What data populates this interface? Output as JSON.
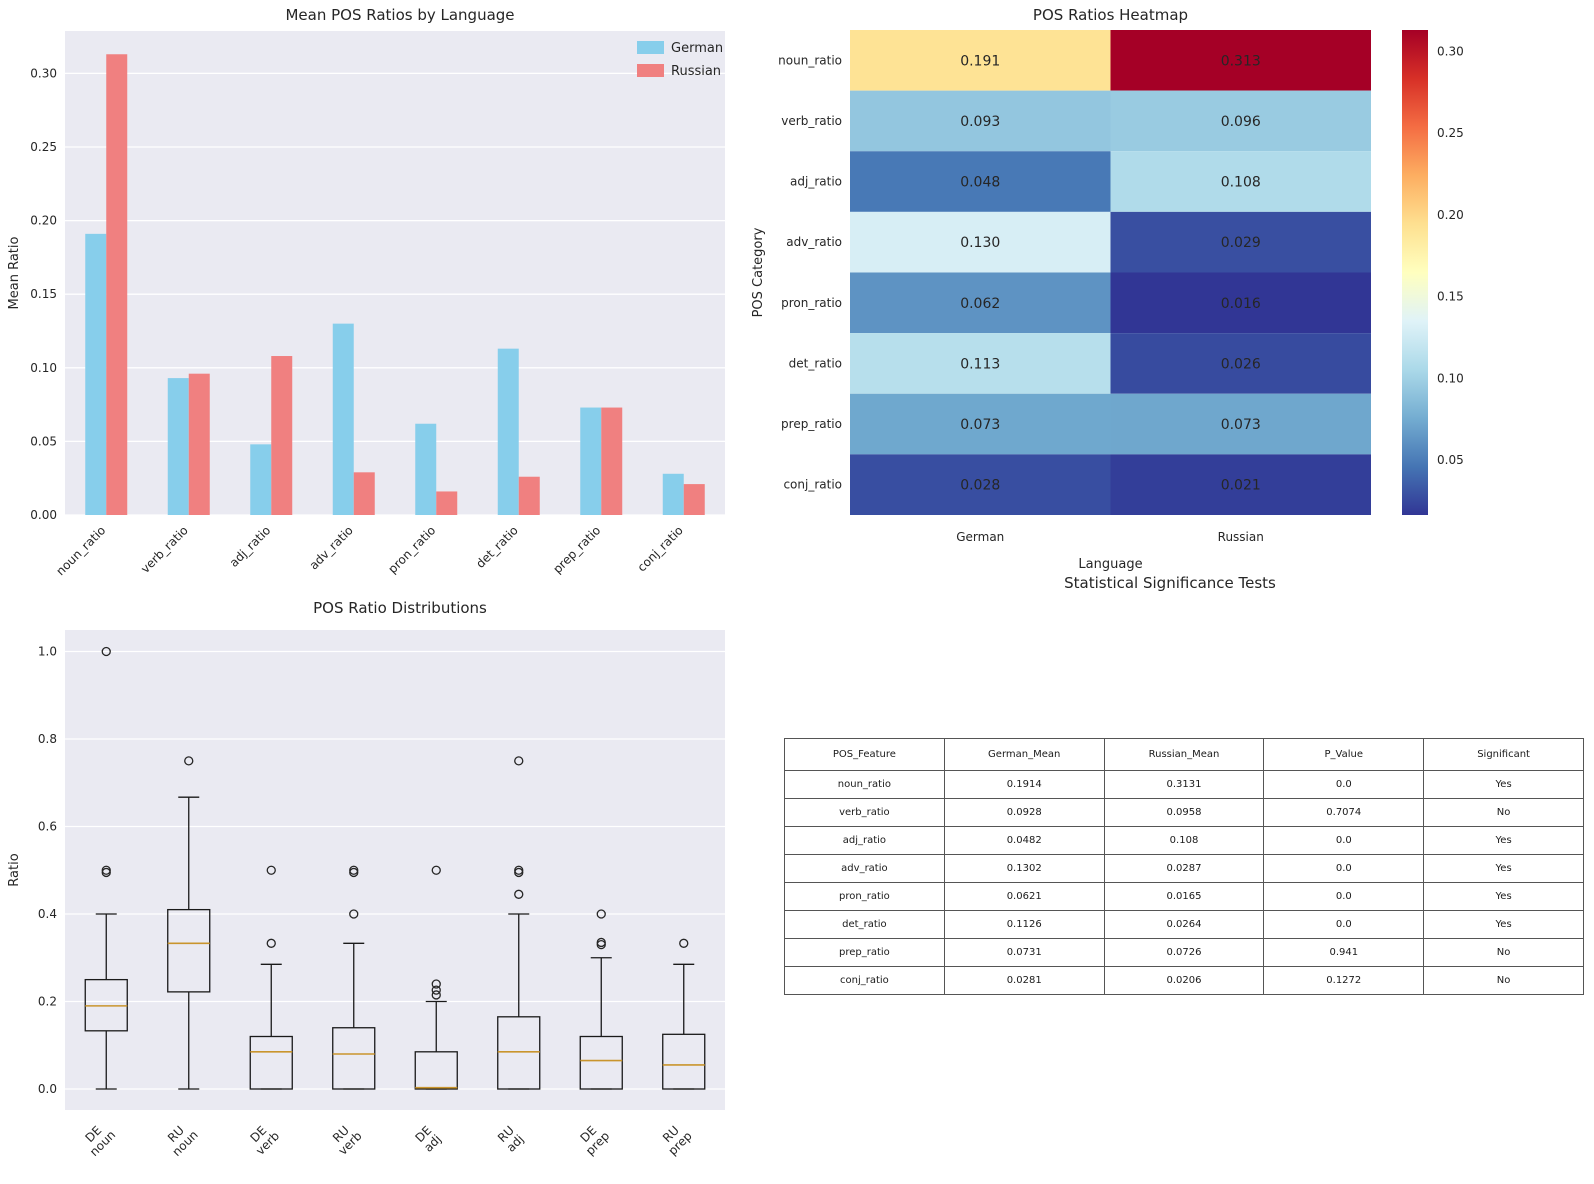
{
  "figure": {
    "background": "#ffffff",
    "plot_background": "#eaeaf2",
    "grid_color": "#ffffff",
    "text_color": "#262626",
    "box_edge_color": "#1a1a1a"
  },
  "chart_data": [
    {
      "id": "bar",
      "type": "bar",
      "title": "Mean POS Ratios by Language",
      "ylabel": "Mean Ratio",
      "categories": [
        "noun_ratio",
        "verb_ratio",
        "adj_ratio",
        "adv_ratio",
        "pron_ratio",
        "det_ratio",
        "prep_ratio",
        "conj_ratio"
      ],
      "series": [
        {
          "name": "German",
          "color": "#87ceeb",
          "values": [
            0.191,
            0.093,
            0.048,
            0.13,
            0.062,
            0.113,
            0.073,
            0.028
          ]
        },
        {
          "name": "Russian",
          "color": "#f08080",
          "values": [
            0.313,
            0.096,
            0.108,
            0.029,
            0.016,
            0.026,
            0.073,
            0.021
          ]
        }
      ],
      "yticks": [
        0.0,
        0.05,
        0.1,
        0.15,
        0.2,
        0.25,
        0.3
      ],
      "ylim": [
        0,
        0.3288
      ],
      "legend_position": "upper right",
      "grid": true
    },
    {
      "id": "heatmap",
      "type": "heatmap",
      "title": "POS Ratios Heatmap",
      "xlabel": "Language",
      "ylabel": "POS Category",
      "columns": [
        "German",
        "Russian"
      ],
      "rows": [
        "noun_ratio",
        "verb_ratio",
        "adj_ratio",
        "adv_ratio",
        "pron_ratio",
        "det_ratio",
        "prep_ratio",
        "conj_ratio"
      ],
      "values": [
        [
          0.191,
          0.313
        ],
        [
          0.093,
          0.096
        ],
        [
          0.048,
          0.108
        ],
        [
          0.13,
          0.029
        ],
        [
          0.062,
          0.016
        ],
        [
          0.113,
          0.026
        ],
        [
          0.073,
          0.073
        ],
        [
          0.028,
          0.021
        ]
      ],
      "cell_colors": [
        [
          "#fee395",
          "#a50026"
        ],
        [
          "#93c6df",
          "#99cbe1"
        ],
        [
          "#4879b6",
          "#b0dbea"
        ],
        [
          "#d7eef5",
          "#394fa1"
        ],
        [
          "#5e93c3",
          "#313695"
        ],
        [
          "#b7dfec",
          "#374b9f"
        ],
        [
          "#6fa8ce",
          "#6fa7cd"
        ],
        [
          "#384ea1",
          "#333e99"
        ]
      ],
      "colorbar": {
        "ticks": [
          0.05,
          0.1,
          0.15,
          0.2,
          0.25,
          0.3
        ],
        "vmin": 0.0165,
        "vmax": 0.3131,
        "gradient_top_to_bottom": [
          "#a50026",
          "#d73027",
          "#f46d43",
          "#fdae61",
          "#fee090",
          "#ffffbf",
          "#e0f3f8",
          "#abd9e9",
          "#74add1",
          "#4575b4",
          "#313695"
        ]
      }
    },
    {
      "id": "box",
      "type": "box",
      "title": "POS Ratio Distributions",
      "ylabel": "Ratio",
      "yticks": [
        0.0,
        0.2,
        0.4,
        0.6,
        0.8,
        1.0
      ],
      "ylim": [
        -0.048,
        1.049
      ],
      "median_color": "#c9952d",
      "categories": [
        [
          "DE",
          "noun"
        ],
        [
          "RU",
          "noun"
        ],
        [
          "DE",
          "verb"
        ],
        [
          "RU",
          "verb"
        ],
        [
          "DE",
          "adj"
        ],
        [
          "RU",
          "adj"
        ],
        [
          "DE",
          "prep"
        ],
        [
          "RU",
          "prep"
        ]
      ],
      "boxes": [
        {
          "whislo": 0.0,
          "q1": 0.133,
          "med": 0.19,
          "q3": 0.25,
          "whishi": 0.4,
          "fliers": [
            0.495,
            0.5,
            1.0
          ]
        },
        {
          "whislo": 0.0,
          "q1": 0.222,
          "med": 0.333,
          "q3": 0.41,
          "whishi": 0.667,
          "fliers": [
            0.75
          ]
        },
        {
          "whislo": 0.0,
          "q1": 0.0,
          "med": 0.085,
          "q3": 0.12,
          "whishi": 0.285,
          "fliers": [
            0.333,
            0.5
          ]
        },
        {
          "whislo": 0.0,
          "q1": 0.0,
          "med": 0.08,
          "q3": 0.14,
          "whishi": 0.333,
          "fliers": [
            0.4,
            0.495,
            0.5
          ]
        },
        {
          "whislo": 0.0,
          "q1": 0.0,
          "med": 0.003,
          "q3": 0.085,
          "whishi": 0.2,
          "fliers": [
            0.215,
            0.226,
            0.24,
            0.5
          ]
        },
        {
          "whislo": 0.0,
          "q1": 0.0,
          "med": 0.085,
          "q3": 0.165,
          "whishi": 0.4,
          "fliers": [
            0.445,
            0.495,
            0.5,
            0.75
          ]
        },
        {
          "whislo": 0.0,
          "q1": 0.0,
          "med": 0.065,
          "q3": 0.12,
          "whishi": 0.3,
          "fliers": [
            0.33,
            0.335,
            0.4
          ]
        },
        {
          "whislo": 0.0,
          "q1": 0.0,
          "med": 0.055,
          "q3": 0.125,
          "whishi": 0.285,
          "fliers": [
            0.333
          ]
        }
      ]
    },
    {
      "id": "table",
      "type": "table",
      "title": "Statistical Significance Tests",
      "columns": [
        "POS_Feature",
        "German_Mean",
        "Russian_Mean",
        "P_Value",
        "Significant"
      ],
      "rows": [
        [
          "noun_ratio",
          "0.1914",
          "0.3131",
          "0.0",
          "Yes"
        ],
        [
          "verb_ratio",
          "0.0928",
          "0.0958",
          "0.7074",
          "No"
        ],
        [
          "adj_ratio",
          "0.0482",
          "0.108",
          "0.0",
          "Yes"
        ],
        [
          "adv_ratio",
          "0.1302",
          "0.0287",
          "0.0",
          "Yes"
        ],
        [
          "pron_ratio",
          "0.0621",
          "0.0165",
          "0.0",
          "Yes"
        ],
        [
          "det_ratio",
          "0.1126",
          "0.0264",
          "0.0",
          "Yes"
        ],
        [
          "prep_ratio",
          "0.0731",
          "0.0726",
          "0.941",
          "No"
        ],
        [
          "conj_ratio",
          "0.0281",
          "0.0206",
          "0.1272",
          "No"
        ]
      ]
    }
  ]
}
